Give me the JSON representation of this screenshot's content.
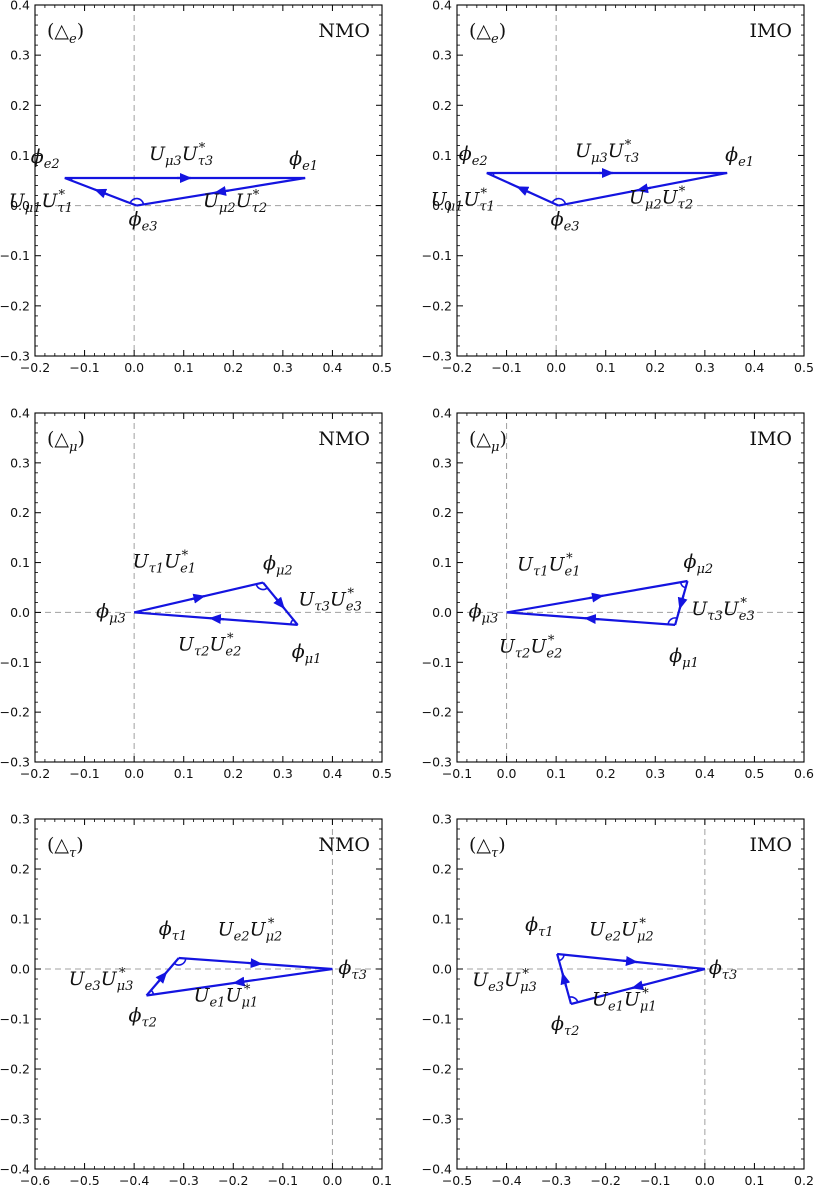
{
  "chart_data": [
    {
      "type": "scatter",
      "panel_label": "(△e)",
      "ordering": "NMO",
      "xlim": [
        -0.2,
        0.5
      ],
      "ylim": [
        -0.3,
        0.4
      ],
      "xticks": [
        "−0.2",
        "−0.1",
        "0.0",
        "0.1",
        "0.2",
        "0.3",
        "0.4",
        "0.5"
      ],
      "yticks": [
        "−0.3",
        "−0.2",
        "−0.1",
        "0.0",
        "0.1",
        "0.2",
        "0.3",
        "0.4"
      ],
      "grid": false,
      "origin_lines": "dashed",
      "triangle": {
        "vertices": [
          {
            "x": -0.14,
            "y": 0.055
          },
          {
            "x": 0.345,
            "y": 0.055
          },
          {
            "x": 0.005,
            "y": 0.0
          }
        ],
        "vertex_labels": [
          "ϕe2",
          "ϕe1",
          "ϕe3"
        ],
        "sides": [
          {
            "from": 0,
            "to": 1,
            "label": "Uμ3Uτ3*"
          },
          {
            "from": 1,
            "to": 2,
            "label": "Uμ2Uτ2*"
          },
          {
            "from": 2,
            "to": 0,
            "label": "Uμ1Uτ1*"
          }
        ]
      }
    },
    {
      "type": "scatter",
      "panel_label": "(△e)",
      "ordering": "IMO",
      "xlim": [
        -0.2,
        0.5
      ],
      "ylim": [
        -0.3,
        0.4
      ],
      "xticks": [
        "−0.2",
        "−0.1",
        "0.0",
        "0.1",
        "0.2",
        "0.3",
        "0.4",
        "0.5"
      ],
      "yticks": [
        "−0.3",
        "−0.2",
        "−0.1",
        "0.0",
        "0.1",
        "0.2",
        "0.3",
        "0.4"
      ],
      "grid": false,
      "origin_lines": "dashed",
      "triangle": {
        "vertices": [
          {
            "x": -0.14,
            "y": 0.065
          },
          {
            "x": 0.345,
            "y": 0.065
          },
          {
            "x": 0.005,
            "y": 0.0
          }
        ],
        "vertex_labels": [
          "ϕe2",
          "ϕe1",
          "ϕe3"
        ],
        "sides": [
          {
            "from": 0,
            "to": 1,
            "label": "Uμ3Uτ3*"
          },
          {
            "from": 1,
            "to": 2,
            "label": "Uμ2Uτ2*"
          },
          {
            "from": 2,
            "to": 0,
            "label": "Uμ1Uτ1*"
          }
        ]
      }
    },
    {
      "type": "scatter",
      "panel_label": "(△μ)",
      "ordering": "NMO",
      "xlim": [
        -0.2,
        0.5
      ],
      "ylim": [
        -0.3,
        0.4
      ],
      "xticks": [
        "−0.2",
        "−0.1",
        "0.0",
        "0.1",
        "0.2",
        "0.3",
        "0.4",
        "0.5"
      ],
      "yticks": [
        "−0.3",
        "−0.2",
        "−0.1",
        "0.0",
        "0.1",
        "0.2",
        "0.3",
        "0.4"
      ],
      "grid": false,
      "origin_lines": "dashed",
      "triangle": {
        "vertices": [
          {
            "x": 0.0,
            "y": 0.0
          },
          {
            "x": 0.26,
            "y": 0.06
          },
          {
            "x": 0.33,
            "y": -0.025
          }
        ],
        "vertex_labels": [
          "ϕμ3",
          "ϕμ2",
          "ϕμ1"
        ],
        "sides": [
          {
            "from": 0,
            "to": 1,
            "label": "Uτ1Ue1*"
          },
          {
            "from": 1,
            "to": 2,
            "label": "Uτ3Ue3*"
          },
          {
            "from": 2,
            "to": 0,
            "label": "Uτ2Ue2*"
          }
        ]
      }
    },
    {
      "type": "scatter",
      "panel_label": "(△μ)",
      "ordering": "IMO",
      "xlim": [
        -0.1,
        0.6
      ],
      "ylim": [
        -0.3,
        0.4
      ],
      "xticks": [
        "−0.1",
        "0.0",
        "0.1",
        "0.2",
        "0.3",
        "0.4",
        "0.5",
        "0.6"
      ],
      "yticks": [
        "−0.3",
        "−0.2",
        "−0.1",
        "0.0",
        "0.1",
        "0.2",
        "0.3",
        "0.4"
      ],
      "grid": false,
      "origin_lines": "dashed",
      "triangle": {
        "vertices": [
          {
            "x": 0.0,
            "y": 0.0
          },
          {
            "x": 0.365,
            "y": 0.063
          },
          {
            "x": 0.34,
            "y": -0.025
          }
        ],
        "vertex_labels": [
          "ϕμ3",
          "ϕμ2",
          "ϕμ1"
        ],
        "sides": [
          {
            "from": 0,
            "to": 1,
            "label": "Uτ1Ue1*"
          },
          {
            "from": 1,
            "to": 2,
            "label": "Uτ3Ue3*"
          },
          {
            "from": 2,
            "to": 0,
            "label": "Uτ2Ue2*"
          }
        ]
      }
    },
    {
      "type": "scatter",
      "panel_label": "(△τ)",
      "ordering": "NMO",
      "xlim": [
        -0.6,
        0.1
      ],
      "ylim": [
        -0.4,
        0.3
      ],
      "xticks": [
        "−0.6",
        "−0.5",
        "−0.4",
        "−0.3",
        "−0.2",
        "−0.1",
        "0.0",
        "0.1"
      ],
      "yticks": [
        "−0.4",
        "−0.3",
        "−0.2",
        "−0.1",
        "0.0",
        "0.1",
        "0.2",
        "0.3"
      ],
      "grid": false,
      "origin_lines": "dashed",
      "triangle": {
        "vertices": [
          {
            "x": -0.31,
            "y": 0.022
          },
          {
            "x": 0.0,
            "y": 0.0
          },
          {
            "x": -0.375,
            "y": -0.053
          }
        ],
        "vertex_labels": [
          "ϕτ1",
          "ϕτ3",
          "ϕτ2"
        ],
        "sides": [
          {
            "from": 0,
            "to": 1,
            "label": "Ue2Uμ2*"
          },
          {
            "from": 1,
            "to": 2,
            "label": "Ue1Uμ1*"
          },
          {
            "from": 2,
            "to": 0,
            "label": "Ue3Uμ3*"
          }
        ]
      }
    },
    {
      "type": "scatter",
      "panel_label": "(△τ)",
      "ordering": "IMO",
      "xlim": [
        -0.5,
        0.2
      ],
      "ylim": [
        -0.4,
        0.3
      ],
      "xticks": [
        "−0.5",
        "−0.4",
        "−0.3",
        "−0.2",
        "−0.1",
        "0.0",
        "0.1",
        "0.2"
      ],
      "yticks": [
        "−0.4",
        "−0.3",
        "−0.2",
        "−0.1",
        "0.0",
        "0.1",
        "0.2",
        "0.3"
      ],
      "grid": false,
      "origin_lines": "dashed",
      "triangle": {
        "vertices": [
          {
            "x": -0.298,
            "y": 0.03
          },
          {
            "x": 0.0,
            "y": 0.0
          },
          {
            "x": -0.27,
            "y": -0.07
          }
        ],
        "vertex_labels": [
          "ϕτ1",
          "ϕτ3",
          "ϕτ2"
        ],
        "sides": [
          {
            "from": 0,
            "to": 1,
            "label": "Ue2Uμ2*"
          },
          {
            "from": 1,
            "to": 2,
            "label": "Ue1Uμ1*"
          },
          {
            "from": 2,
            "to": 0,
            "label": "Ue3Uμ3*"
          }
        ]
      }
    }
  ],
  "colors": {
    "triangle": "#1414e0",
    "axes": "#000000",
    "origin_lines": "#a0a0a0"
  }
}
